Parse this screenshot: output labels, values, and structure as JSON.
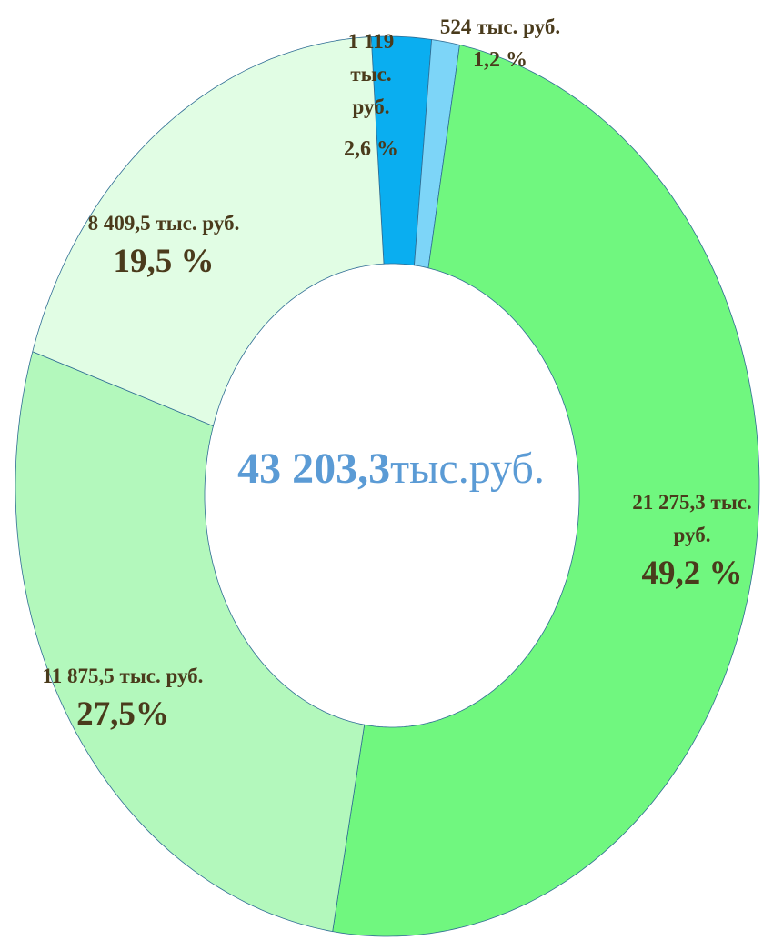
{
  "chart_data": {
    "type": "donut",
    "center_value": "43 203,3",
    "center_unit": "тыс.руб.",
    "values": [
      1119,
      524,
      21275.3,
      11875.5,
      8409.5
    ],
    "value_labels": [
      "1 119 тыс. руб.",
      "524 тыс. руб.",
      "21 275,3 тыс. руб.",
      "11 875,5 тыс. руб.",
      "8 409,5 тыс. руб."
    ],
    "percent_labels": [
      "2,6 %",
      "1,2 %",
      "49,2 %",
      "27,5%",
      "19,5 %"
    ],
    "colors": [
      "#0aaef0",
      "#7dd5f8",
      "#70f77f",
      "#b3f8bc",
      "#e1fde4"
    ]
  }
}
